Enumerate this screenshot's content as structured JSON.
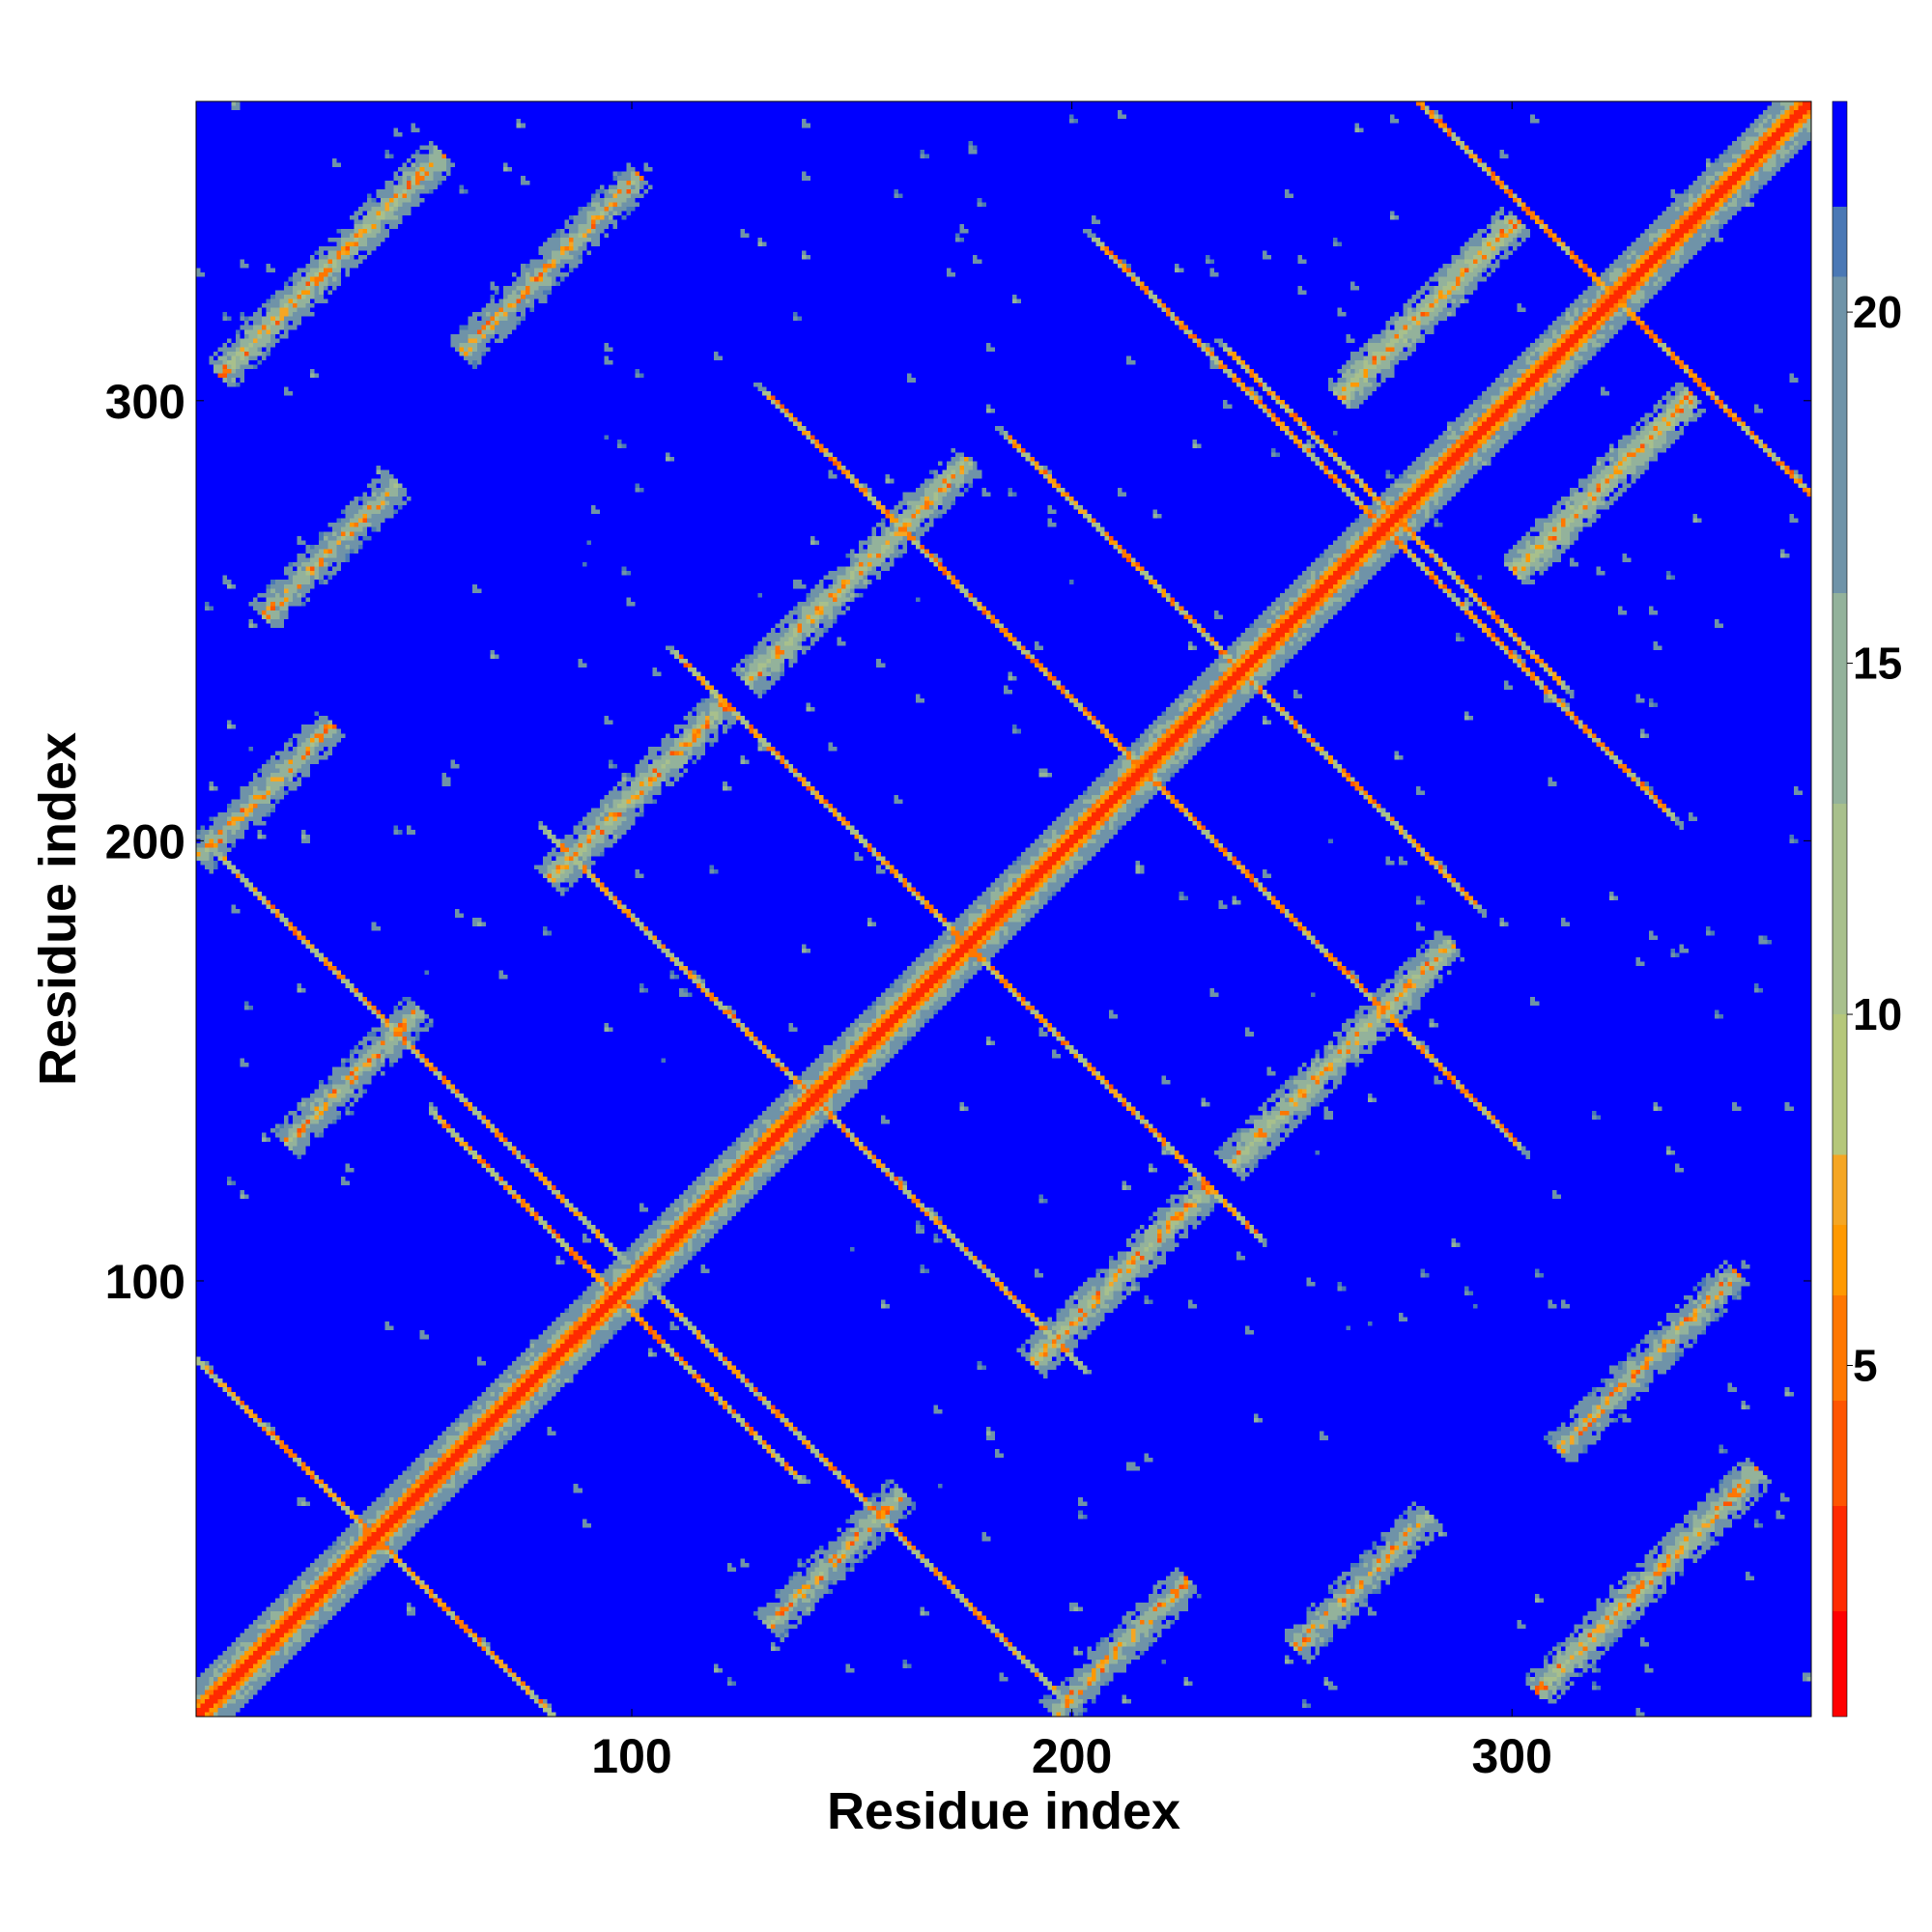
{
  "chart_data": {
    "type": "heatmap",
    "title": "",
    "xlabel": "Residue index",
    "ylabel": "Residue index",
    "xlim": [
      1,
      368
    ],
    "ylim": [
      1,
      368
    ],
    "xticks": [
      100,
      200,
      300
    ],
    "yticks": [
      100,
      200,
      300
    ],
    "xtick_labels": [
      "100",
      "200",
      "300"
    ],
    "ytick_labels": [
      "100",
      "200",
      "300"
    ],
    "grid": false,
    "description_of_values": "symmetric residue-residue distance map; values below ~4 along the main diagonal, ~8-20 in contact bands, saturated (>22) elsewhere",
    "diagonal_value": 2,
    "background_value": 23,
    "colorbar": {
      "vmin": 0,
      "vmax": 23,
      "ticks": [
        5,
        10,
        15,
        20
      ],
      "tick_labels": [
        "5",
        "10",
        "15",
        "20"
      ],
      "colors": [
        {
          "from": 0,
          "to": 1.5,
          "color": "#ff0000"
        },
        {
          "from": 1.5,
          "to": 3,
          "color": "#ff2a00"
        },
        {
          "from": 3,
          "to": 4.5,
          "color": "#ff5500"
        },
        {
          "from": 4.5,
          "to": 6,
          "color": "#ff7700"
        },
        {
          "from": 6,
          "to": 7,
          "color": "#ff9900"
        },
        {
          "from": 7,
          "to": 8,
          "color": "#f5a623"
        },
        {
          "from": 8,
          "to": 10,
          "color": "#b5c77a"
        },
        {
          "from": 10,
          "to": 13,
          "color": "#a8c08c"
        },
        {
          "from": 13,
          "to": 16,
          "color": "#93b29b"
        },
        {
          "from": 16,
          "to": 20.5,
          "color": "#6f93a8"
        },
        {
          "from": 20.5,
          "to": 21.5,
          "color": "#4a78b5"
        },
        {
          "from": 21.5,
          "to": 23,
          "color": "#0000ff"
        }
      ]
    },
    "contact_bands": [
      {
        "center": [
          50,
          150
        ],
        "direction": "anti",
        "half_length": 45,
        "value": 12
      },
      {
        "center": [
          150,
          200
        ],
        "direction": "anti",
        "half_length": 40,
        "value": 11
      },
      {
        "center": [
          190,
          240
        ],
        "direction": "anti",
        "half_length": 40,
        "value": 11
      },
      {
        "center": [
          240,
          300
        ],
        "direction": "anti",
        "half_length": 35,
        "value": 12
      },
      {
        "center": [
          300,
          345
        ],
        "direction": "anti",
        "half_length": 30,
        "value": 11
      },
      {
        "center": [
          110,
          170
        ],
        "direction": "anti",
        "half_length": 30,
        "value": 12
      },
      {
        "center": [
          80,
          110
        ],
        "direction": "anti",
        "half_length": 25,
        "value": 11
      },
      {
        "center": [
          20,
          60
        ],
        "direction": "anti",
        "half_length": 30,
        "value": 12
      },
      {
        "center": [
          165,
          265
        ],
        "direction": "anti",
        "half_length": 35,
        "value": 12
      },
      {
        "center": [
          210,
          265
        ],
        "direction": "anti",
        "half_length": 25,
        "value": 12
      },
      {
        "center": [
          255,
          290
        ],
        "direction": "anti",
        "half_length": 20,
        "value": 11
      },
      {
        "center": [
          310,
          335
        ],
        "direction": "anti",
        "half_length": 20,
        "value": 11
      },
      {
        "center": [
          150,
          260
        ],
        "direction": "par",
        "half_length": 25,
        "value": 13
      },
      {
        "center": [
          100,
          210
        ],
        "direction": "par",
        "half_length": 20,
        "value": 13
      },
      {
        "center": [
          35,
          145
        ],
        "direction": "par",
        "half_length": 15,
        "value": 14
      },
      {
        "center": [
          30,
          330
        ],
        "direction": "par",
        "half_length": 25,
        "value": 13
      },
      {
        "center": [
          80,
          330
        ],
        "direction": "par",
        "half_length": 20,
        "value": 14
      },
      {
        "center": [
          30,
          265
        ],
        "direction": "par",
        "half_length": 15,
        "value": 14
      },
      {
        "center": [
          15,
          210
        ],
        "direction": "par",
        "half_length": 15,
        "value": 14
      },
      {
        "center": [
          280,
          320
        ],
        "direction": "par",
        "half_length": 20,
        "value": 12
      }
    ]
  }
}
